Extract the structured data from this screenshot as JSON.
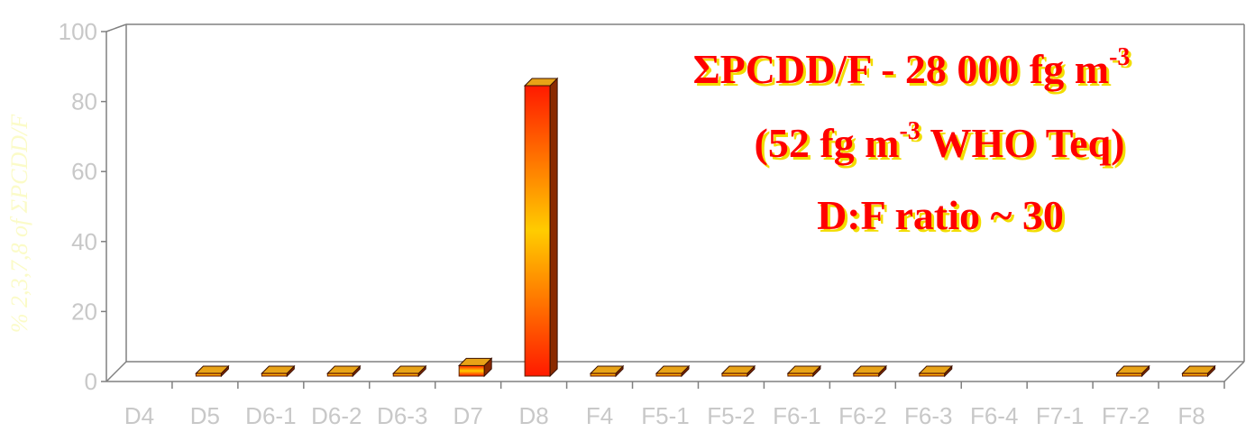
{
  "chart_data": {
    "type": "bar",
    "title": "",
    "xlabel": "",
    "ylabel": "% 2,3,7,8 of ΣPCDD/F",
    "ylim": [
      0,
      100
    ],
    "yticks": [
      "0",
      "20",
      "40",
      "60",
      "80",
      "100"
    ],
    "categories": [
      "D4",
      "D5",
      "D6-1",
      "D6-2",
      "D6-3",
      "D7",
      "D8",
      "F4",
      "F5-1",
      "F5-2",
      "F6-1",
      "F6-2",
      "F6-3",
      "F6-4",
      "F7-1",
      "F7-2",
      "F8"
    ],
    "values": [
      0,
      0.3,
      0.3,
      0.3,
      0.7,
      3.0,
      83.0,
      0.2,
      0.1,
      0.1,
      0.1,
      0.1,
      0.1,
      0,
      0,
      0.5,
      0.3
    ],
    "grid": false,
    "legend": "none",
    "annotation": {
      "line1_main": "ΣPCDD/F -  28 000 fg m",
      "line1_sup": "-3",
      "line2_pre": "(52 fg m",
      "line2_sup": "-3",
      "line2_post": " WHO Teq)",
      "line3": "D:F ratio  ~ 30"
    },
    "colors": {
      "bar_front_top": "#ff1a00",
      "bar_front_mid": "#ffcc00",
      "bar_side": "#8a2a00",
      "bar_top": "#e8a317",
      "axis": "#808080",
      "tick_label": "#c8c8c8",
      "annotation": "#ff0000",
      "annotation_shadow": "#f2dd00"
    }
  }
}
